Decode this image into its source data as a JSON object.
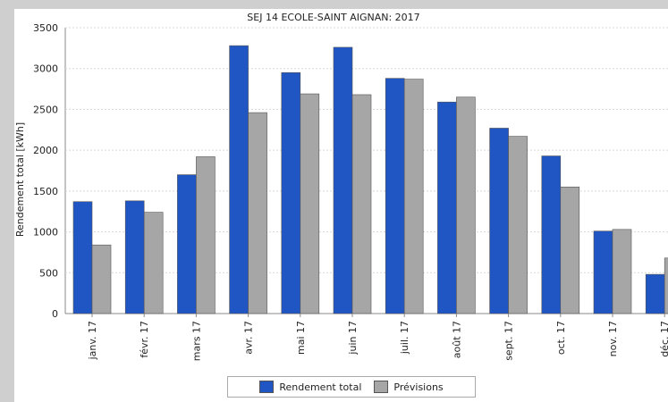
{
  "chart_data": {
    "type": "bar",
    "title": "SEJ 14 ECOLE-SAINT AIGNAN: 2017",
    "xlabel": "",
    "ylabel": "Rendement total [kWh]",
    "categories": [
      "janv. 17",
      "févr. 17",
      "mars 17",
      "avr. 17",
      "mai 17",
      "juin 17",
      "juil. 17",
      "août 17",
      "sept. 17",
      "oct. 17",
      "nov. 17",
      "déc. 17"
    ],
    "series": [
      {
        "name": "Rendement total",
        "color": "#2055c4",
        "values": [
          1370,
          1380,
          1700,
          3280,
          2950,
          3260,
          2880,
          2590,
          2270,
          1930,
          1010,
          480
        ]
      },
      {
        "name": "Prévisions",
        "color": "#a6a6a6",
        "values": [
          840,
          1240,
          1920,
          2460,
          2690,
          2680,
          2870,
          2650,
          2170,
          1550,
          1030,
          680
        ]
      }
    ],
    "ylim": [
      0,
      3500
    ],
    "yticks": [
      0,
      500,
      1000,
      1500,
      2000,
      2500,
      3000,
      3500
    ],
    "grid": true,
    "legend_position": "bottom-center"
  }
}
